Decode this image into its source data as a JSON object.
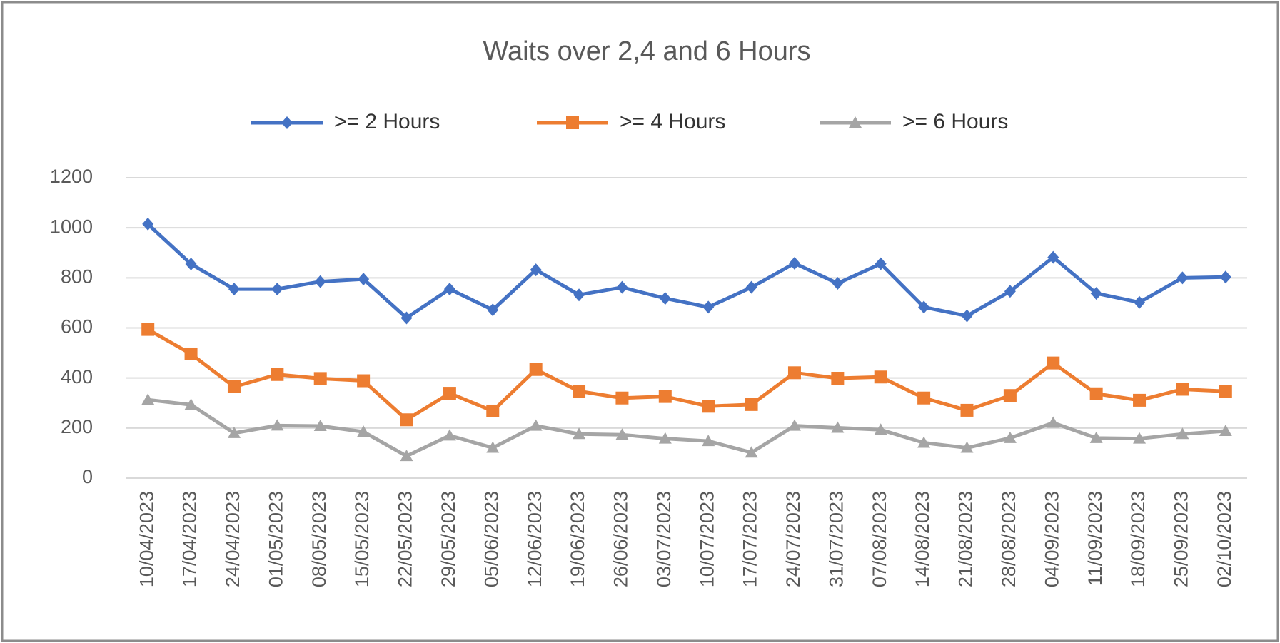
{
  "chart_data": {
    "type": "line",
    "title": "Waits over 2,4 and 6 Hours",
    "categories": [
      "10/04/2023",
      "17/04/2023",
      "24/04/2023",
      "01/05/2023",
      "08/05/2023",
      "15/05/2023",
      "22/05/2023",
      "29/05/2023",
      "05/06/2023",
      "12/06/2023",
      "19/06/2023",
      "26/06/2023",
      "03/07/2023",
      "10/07/2023",
      "17/07/2023",
      "24/07/2023",
      "31/07/2023",
      "07/08/2023",
      "14/08/2023",
      "21/08/2023",
      "28/08/2023",
      "04/09/2023",
      "11/09/2023",
      "18/09/2023",
      "25/09/2023",
      "02/10/2023"
    ],
    "series": [
      {
        "name": ">= 2 Hours",
        "color": "#4472c4",
        "marker": "diamond",
        "values": [
          1015,
          855,
          755,
          755,
          785,
          795,
          640,
          755,
          672,
          832,
          732,
          762,
          718,
          683,
          762,
          858,
          778,
          856,
          683,
          648,
          746,
          882,
          738,
          702,
          800,
          803
        ]
      },
      {
        "name": ">= 4 Hours",
        "color": "#ed7d31",
        "marker": "square",
        "values": [
          594,
          496,
          365,
          414,
          398,
          389,
          233,
          339,
          268,
          434,
          347,
          320,
          326,
          287,
          294,
          421,
          399,
          404,
          320,
          271,
          330,
          460,
          337,
          311,
          355,
          347
        ]
      },
      {
        "name": ">= 6 Hours",
        "color": "#a5a5a5",
        "marker": "triangle",
        "values": [
          313,
          293,
          180,
          210,
          208,
          185,
          88,
          170,
          121,
          209,
          176,
          173,
          158,
          148,
          102,
          209,
          201,
          193,
          141,
          121,
          160,
          221,
          160,
          158,
          176,
          188
        ]
      }
    ],
    "ylim": [
      0,
      1200
    ],
    "yticks": [
      0,
      200,
      400,
      600,
      800,
      1000,
      1200
    ],
    "grid": true,
    "legend": "top"
  }
}
